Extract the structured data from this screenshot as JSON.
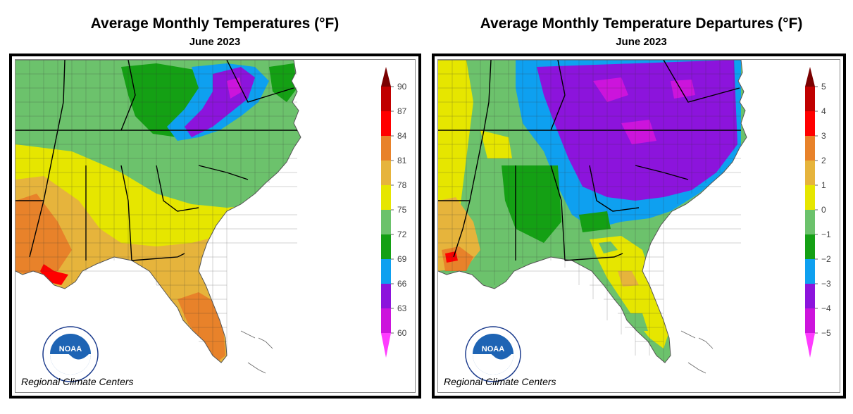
{
  "left_panel": {
    "title": "Average Monthly Temperatures (°F)",
    "subtitle": "June 2023",
    "credit": "Regional Climate Centers",
    "logo_text": "NOAA",
    "colorbar": {
      "labels": [
        "90",
        "87",
        "84",
        "81",
        "78",
        "75",
        "72",
        "69",
        "66",
        "63",
        "60"
      ],
      "colors": [
        "#7a0000",
        "#c00000",
        "#ff0000",
        "#e8822a",
        "#e6b43c",
        "#e6e600",
        "#6cc26c",
        "#14a014",
        "#0ea0f0",
        "#8c14dc",
        "#cc14dc",
        "#ff3cff"
      ]
    }
  },
  "right_panel": {
    "title": "Average Monthly Temperature Departures (°F)",
    "subtitle": "June 2023",
    "credit": "Regional Climate Centers",
    "logo_text": "NOAA",
    "colorbar": {
      "labels": [
        "5",
        "4",
        "3",
        "2",
        "1",
        "0",
        "−1",
        "−2",
        "−3",
        "−4",
        "−5"
      ],
      "colors": [
        "#7a0000",
        "#c00000",
        "#ff0000",
        "#e8822a",
        "#e6b43c",
        "#e6e600",
        "#6cc26c",
        "#14a014",
        "#0ea0f0",
        "#8c14dc",
        "#cc14dc",
        "#ff3cff"
      ]
    }
  }
}
